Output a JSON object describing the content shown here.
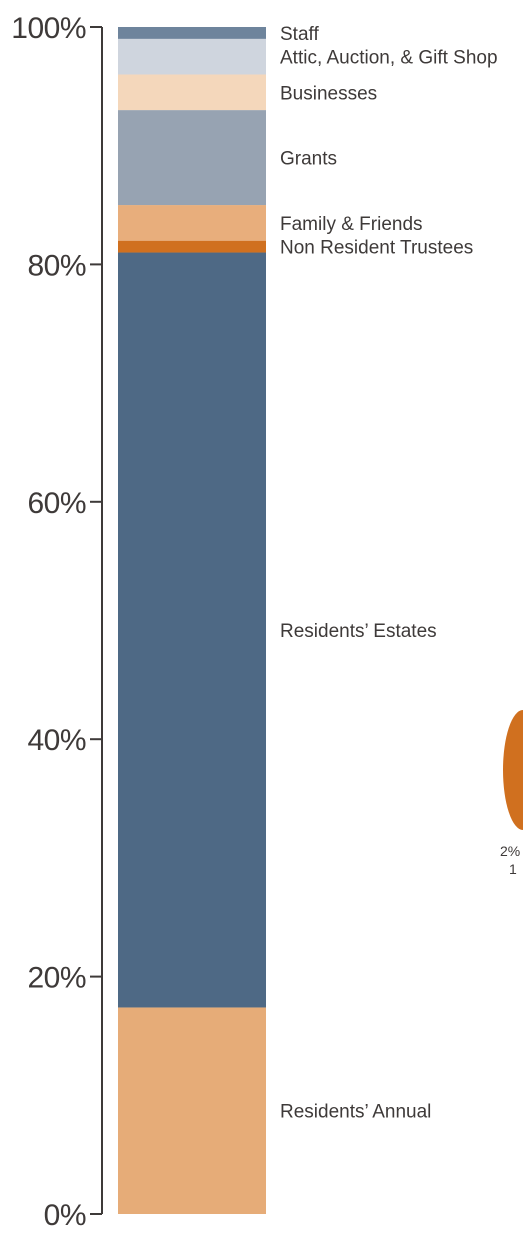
{
  "chart_data": {
    "type": "bar",
    "stacked": true,
    "ylim": [
      0,
      100
    ],
    "yticks": [
      {
        "value": 0,
        "label": "0%"
      },
      {
        "value": 20,
        "label": "20%"
      },
      {
        "value": 40,
        "label": "40%"
      },
      {
        "value": 60,
        "label": "60%"
      },
      {
        "value": 80,
        "label": "80%"
      },
      {
        "value": 100,
        "label": "100%"
      }
    ],
    "segments": [
      {
        "label": "Residents’ Annual",
        "value": 17.4,
        "color": "#E6AC78"
      },
      {
        "label": "Residents’ Estates",
        "value": 63.6,
        "color": "#4E6985"
      },
      {
        "label": "Non Resident Trustees",
        "value": 1.0,
        "color": "#D0701F"
      },
      {
        "label": "Family & Friends",
        "value": 3.0,
        "color": "#E8AE7C"
      },
      {
        "label": "Grants",
        "value": 8.0,
        "color": "#97A3B2"
      },
      {
        "label": "Businesses",
        "value": 3.0,
        "color": "#F4D7BB"
      },
      {
        "label": "Attic, Auction, & Gift Shop",
        "value": 3.0,
        "color": "#CFD5DE"
      },
      {
        "label": "Staff",
        "value": 1.0,
        "color": "#6E849C"
      }
    ],
    "grid": false,
    "legend": "right"
  },
  "partial_annotation": {
    "lines": [
      "2%",
      "1"
    ],
    "color": "#D0701F"
  }
}
